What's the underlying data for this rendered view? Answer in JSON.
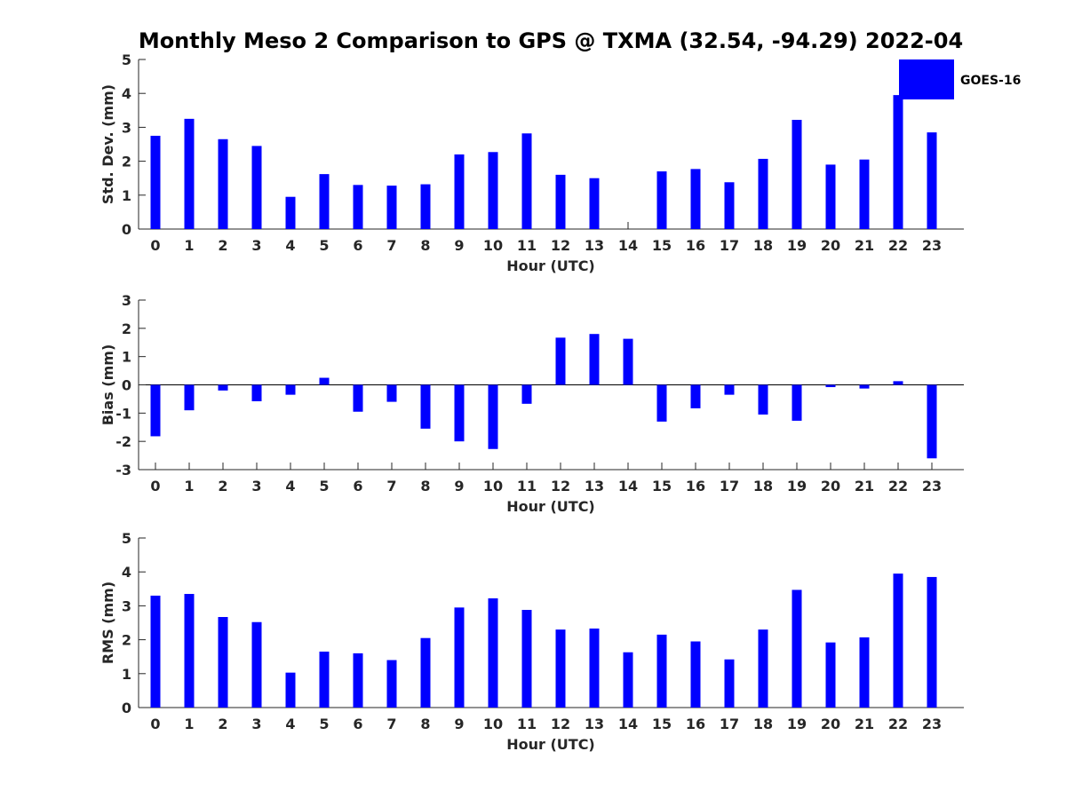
{
  "title": "Monthly Meso 2 Comparison to GPS @ TXMA (32.54, -94.29) 2022-04",
  "colors": {
    "bar": "#0000ff",
    "axis": "#262626",
    "background": "#ffffff"
  },
  "legend": {
    "label": "GOES-16",
    "placement": "top-right"
  },
  "chart_data": [
    {
      "type": "bar",
      "xlabel": "Hour (UTC)",
      "ylabel": "Std. Dev. (mm)",
      "ylim": [
        0,
        5
      ],
      "yticks": [
        0,
        1,
        2,
        3,
        4,
        5
      ],
      "categories": [
        "0",
        "1",
        "2",
        "3",
        "4",
        "5",
        "6",
        "7",
        "8",
        "9",
        "10",
        "11",
        "12",
        "13",
        "14",
        "15",
        "16",
        "17",
        "18",
        "19",
        "20",
        "21",
        "22",
        "23"
      ],
      "series": [
        {
          "name": "GOES-16",
          "values": [
            2.75,
            3.25,
            2.65,
            2.45,
            0.95,
            1.62,
            1.3,
            1.28,
            1.32,
            2.2,
            2.27,
            2.82,
            1.6,
            1.5,
            0.0,
            1.7,
            1.77,
            1.38,
            2.07,
            3.22,
            1.9,
            2.05,
            3.95,
            2.85
          ]
        }
      ],
      "grid": false
    },
    {
      "type": "bar",
      "xlabel": "Hour (UTC)",
      "ylabel": "Bias (mm)",
      "ylim": [
        -3,
        3
      ],
      "yticks": [
        -3,
        -2,
        -1,
        0,
        1,
        2,
        3
      ],
      "categories": [
        "0",
        "1",
        "2",
        "3",
        "4",
        "5",
        "6",
        "7",
        "8",
        "9",
        "10",
        "11",
        "12",
        "13",
        "14",
        "15",
        "16",
        "17",
        "18",
        "19",
        "20",
        "21",
        "22",
        "23"
      ],
      "series": [
        {
          "name": "GOES-16",
          "values": [
            -1.82,
            -0.9,
            -0.2,
            -0.58,
            -0.35,
            0.25,
            -0.95,
            -0.6,
            -1.55,
            -2.0,
            -2.27,
            -0.67,
            1.67,
            1.8,
            1.63,
            -1.3,
            -0.83,
            -0.35,
            -1.05,
            -1.27,
            -0.08,
            -0.13,
            0.13,
            -2.6
          ]
        }
      ],
      "grid": false
    },
    {
      "type": "bar",
      "xlabel": "Hour (UTC)",
      "ylabel": "RMS (mm)",
      "ylim": [
        0,
        5
      ],
      "yticks": [
        0,
        1,
        2,
        3,
        4,
        5
      ],
      "categories": [
        "0",
        "1",
        "2",
        "3",
        "4",
        "5",
        "6",
        "7",
        "8",
        "9",
        "10",
        "11",
        "12",
        "13",
        "14",
        "15",
        "16",
        "17",
        "18",
        "19",
        "20",
        "21",
        "22",
        "23"
      ],
      "series": [
        {
          "name": "GOES-16",
          "values": [
            3.3,
            3.35,
            2.67,
            2.52,
            1.03,
            1.65,
            1.6,
            1.4,
            2.05,
            2.95,
            3.22,
            2.88,
            2.3,
            2.33,
            1.63,
            2.15,
            1.95,
            1.42,
            2.3,
            3.47,
            1.92,
            2.07,
            3.95,
            3.85
          ]
        }
      ],
      "grid": false
    }
  ]
}
